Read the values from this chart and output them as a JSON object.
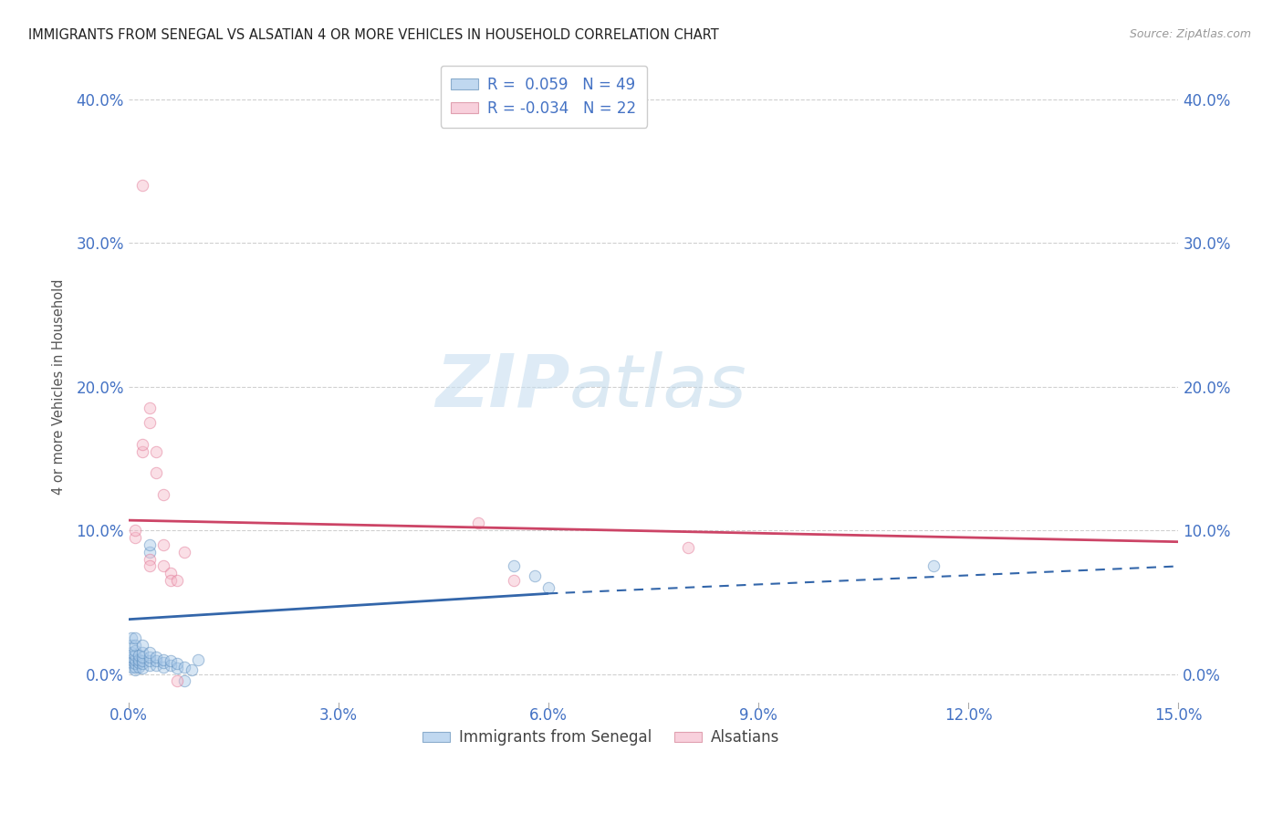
{
  "title": "IMMIGRANTS FROM SENEGAL VS ALSATIAN 4 OR MORE VEHICLES IN HOUSEHOLD CORRELATION CHART",
  "source": "Source: ZipAtlas.com",
  "tick_color": "#4472C4",
  "ylabel": "4 or more Vehicles in Household",
  "xlim": [
    0.0,
    0.15
  ],
  "ylim": [
    -0.02,
    0.42
  ],
  "xticks": [
    0.0,
    0.03,
    0.06,
    0.09,
    0.12,
    0.15
  ],
  "yticks": [
    0.0,
    0.1,
    0.2,
    0.3,
    0.4
  ],
  "background_color": "#ffffff",
  "grid_color": "#d0d0d0",
  "watermark_zip": "ZIP",
  "watermark_atlas": "atlas",
  "legend_R1": "R =  0.059",
  "legend_N1": "N = 49",
  "legend_R2": "R = -0.034",
  "legend_N2": "N = 22",
  "blue_scatter": [
    [
      0.0005,
      0.005
    ],
    [
      0.0005,
      0.008
    ],
    [
      0.0005,
      0.01
    ],
    [
      0.0005,
      0.012
    ],
    [
      0.0005,
      0.015
    ],
    [
      0.0005,
      0.02
    ],
    [
      0.0005,
      0.025
    ],
    [
      0.001,
      0.003
    ],
    [
      0.001,
      0.005
    ],
    [
      0.001,
      0.007
    ],
    [
      0.001,
      0.01
    ],
    [
      0.001,
      0.013
    ],
    [
      0.001,
      0.016
    ],
    [
      0.001,
      0.02
    ],
    [
      0.001,
      0.025
    ],
    [
      0.0015,
      0.005
    ],
    [
      0.0015,
      0.008
    ],
    [
      0.0015,
      0.01
    ],
    [
      0.0015,
      0.013
    ],
    [
      0.002,
      0.004
    ],
    [
      0.002,
      0.007
    ],
    [
      0.002,
      0.009
    ],
    [
      0.002,
      0.012
    ],
    [
      0.002,
      0.015
    ],
    [
      0.002,
      0.02
    ],
    [
      0.003,
      0.006
    ],
    [
      0.003,
      0.009
    ],
    [
      0.003,
      0.012
    ],
    [
      0.003,
      0.015
    ],
    [
      0.003,
      0.085
    ],
    [
      0.003,
      0.09
    ],
    [
      0.004,
      0.006
    ],
    [
      0.004,
      0.009
    ],
    [
      0.004,
      0.012
    ],
    [
      0.005,
      0.005
    ],
    [
      0.005,
      0.008
    ],
    [
      0.005,
      0.01
    ],
    [
      0.006,
      0.006
    ],
    [
      0.006,
      0.009
    ],
    [
      0.007,
      0.004
    ],
    [
      0.007,
      0.007
    ],
    [
      0.008,
      0.005
    ],
    [
      0.009,
      0.003
    ],
    [
      0.01,
      0.01
    ],
    [
      0.055,
      0.075
    ],
    [
      0.058,
      0.068
    ],
    [
      0.06,
      0.06
    ],
    [
      0.115,
      0.075
    ],
    [
      0.008,
      -0.005
    ]
  ],
  "pink_scatter": [
    [
      0.001,
      0.095
    ],
    [
      0.001,
      0.1
    ],
    [
      0.002,
      0.155
    ],
    [
      0.002,
      0.16
    ],
    [
      0.003,
      0.185
    ],
    [
      0.003,
      0.175
    ],
    [
      0.004,
      0.155
    ],
    [
      0.004,
      0.14
    ],
    [
      0.005,
      0.125
    ],
    [
      0.003,
      0.08
    ],
    [
      0.003,
      0.075
    ],
    [
      0.005,
      0.09
    ],
    [
      0.005,
      0.075
    ],
    [
      0.006,
      0.07
    ],
    [
      0.006,
      0.065
    ],
    [
      0.007,
      0.065
    ],
    [
      0.008,
      0.085
    ],
    [
      0.05,
      0.105
    ],
    [
      0.055,
      0.065
    ],
    [
      0.002,
      0.34
    ],
    [
      0.08,
      0.088
    ],
    [
      0.007,
      -0.005
    ]
  ],
  "blue_solid_line": [
    [
      0.0,
      0.038
    ],
    [
      0.06,
      0.056
    ]
  ],
  "blue_dash_line": [
    [
      0.06,
      0.056
    ],
    [
      0.15,
      0.075
    ]
  ],
  "pink_solid_line": [
    [
      0.0,
      0.107
    ],
    [
      0.15,
      0.092
    ]
  ],
  "scatter_alpha": 0.45,
  "scatter_size": 80,
  "blue_fill_color": "#a8c8e8",
  "pink_fill_color": "#f4b8c8",
  "blue_edge_color": "#5588bb",
  "pink_edge_color": "#e07090",
  "blue_line_color": "#3366aa",
  "pink_line_color": "#cc4466"
}
